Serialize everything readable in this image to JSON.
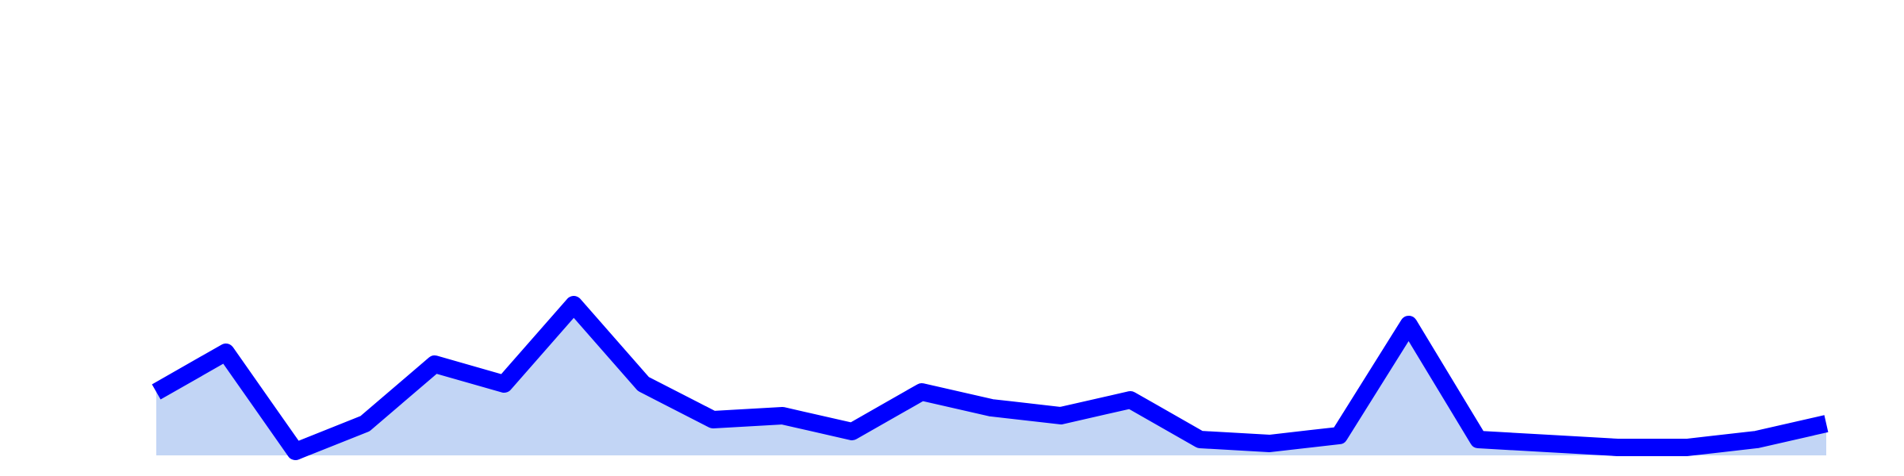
{
  "chart_data": {
    "type": "area",
    "title": "",
    "xlabel": "",
    "ylabel": "",
    "grid": false,
    "legend": "none",
    "x": [
      1,
      2,
      3,
      4,
      5,
      6,
      7,
      8,
      9,
      10,
      11,
      12,
      13,
      14,
      15,
      16,
      17,
      18,
      19,
      20,
      21,
      22,
      23,
      24,
      25
    ],
    "series": [
      {
        "values": [
          16,
          26,
          1,
          8,
          23,
          18,
          38,
          18,
          9,
          10,
          6,
          16,
          12,
          10,
          14,
          4,
          3,
          5,
          33,
          4,
          3,
          2,
          2,
          4,
          8
        ]
      }
    ],
    "ylim": [
      0,
      100
    ],
    "colors": {
      "line": "#0000ff",
      "fill": "#c2d5f5"
    }
  }
}
